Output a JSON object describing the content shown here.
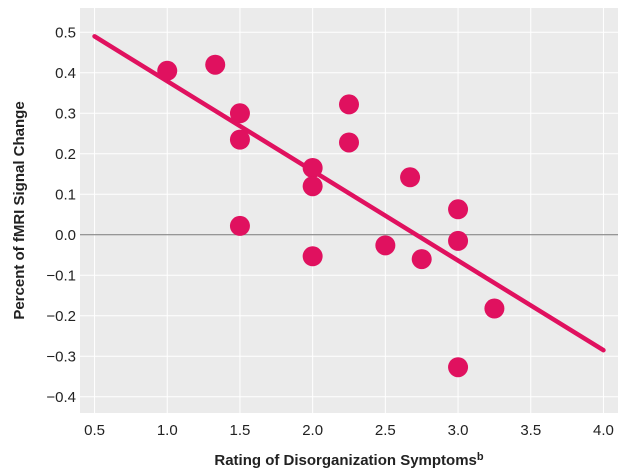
{
  "chart_data": {
    "type": "scatter",
    "title": "",
    "xlabel": "Rating of Disorganization Symptoms",
    "xlabel_superscript": "b",
    "ylabel": "Percent of fMRI Signal Change",
    "xlim": [
      0.4,
      4.1
    ],
    "ylim": [
      -0.44,
      0.56
    ],
    "x_ticks": [
      "0.5",
      "1.0",
      "1.5",
      "2.0",
      "2.5",
      "3.0",
      "3.5",
      "4.0"
    ],
    "y_ticks": [
      "0.5",
      "0.4",
      "0.3",
      "0.2",
      "0.1",
      "0.0",
      "−0.1",
      "−0.2",
      "−0.3",
      "−0.4"
    ],
    "grid": true,
    "background_color": "#ebebeb",
    "grid_color": "#ffffff",
    "marker_color": "#e0115f",
    "zero_line_color": "#777777",
    "points": [
      {
        "x": 1.0,
        "y": 0.405
      },
      {
        "x": 1.33,
        "y": 0.42
      },
      {
        "x": 1.5,
        "y": 0.3
      },
      {
        "x": 1.5,
        "y": 0.235
      },
      {
        "x": 1.5,
        "y": 0.022
      },
      {
        "x": 2.0,
        "y": 0.165
      },
      {
        "x": 2.0,
        "y": 0.12
      },
      {
        "x": 2.0,
        "y": -0.053
      },
      {
        "x": 2.25,
        "y": 0.322
      },
      {
        "x": 2.25,
        "y": 0.228
      },
      {
        "x": 2.5,
        "y": -0.026
      },
      {
        "x": 2.67,
        "y": 0.142
      },
      {
        "x": 2.75,
        "y": -0.06
      },
      {
        "x": 3.0,
        "y": 0.063
      },
      {
        "x": 3.0,
        "y": -0.015
      },
      {
        "x": 3.0,
        "y": -0.327
      },
      {
        "x": 3.25,
        "y": -0.182
      }
    ],
    "regression_line": {
      "x": [
        0.5,
        4.0
      ],
      "y": [
        0.49,
        -0.285
      ]
    }
  }
}
